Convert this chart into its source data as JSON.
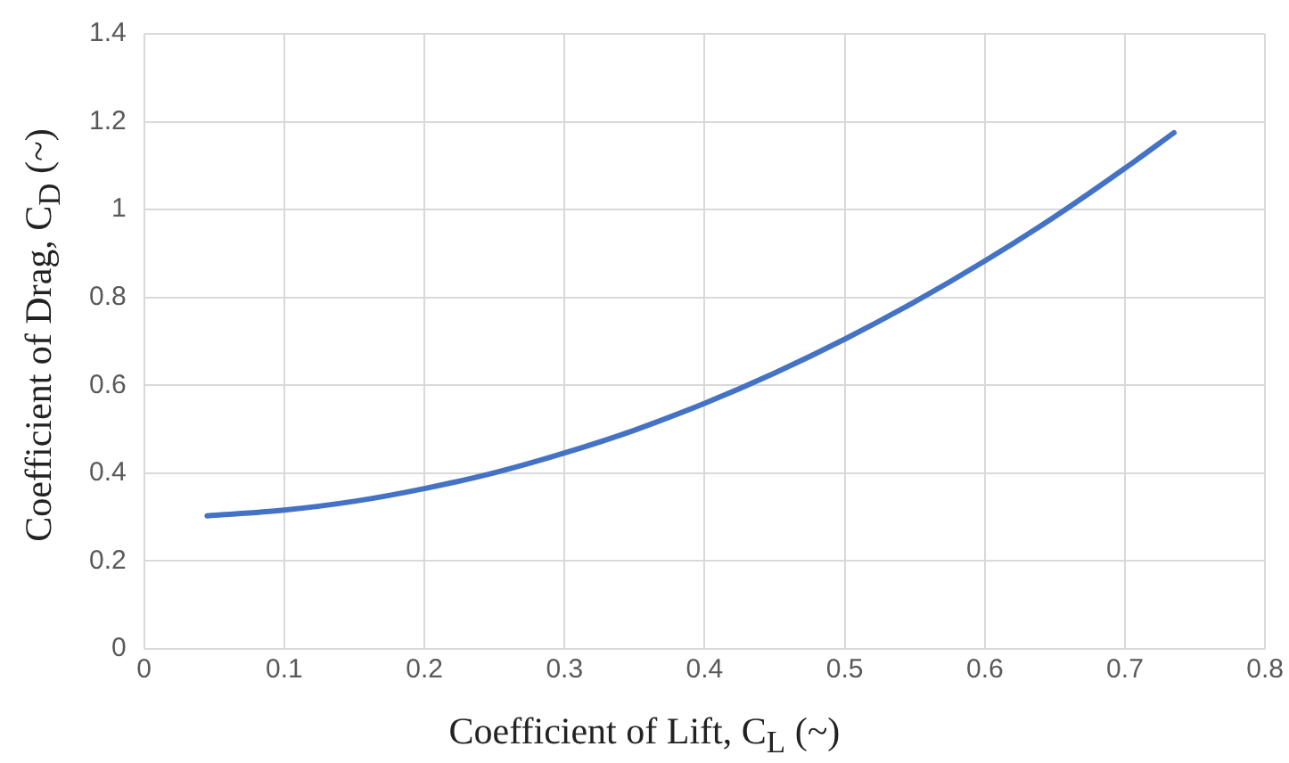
{
  "chart_data": {
    "type": "line",
    "xlabel": "Coefficient of Lift, C$_{L}$ (~)",
    "ylabel": "Coefficient of Drag, C$_{D}$ (~)",
    "x": [
      0.045,
      0.1,
      0.15,
      0.2,
      0.25,
      0.3,
      0.35,
      0.4,
      0.45,
      0.5,
      0.55,
      0.6,
      0.65,
      0.7,
      0.735
    ],
    "series": [
      {
        "color": "#4472c4",
        "values": [
          0.303,
          0.316,
          0.336,
          0.365,
          0.401,
          0.446,
          0.498,
          0.559,
          0.628,
          0.705,
          0.79,
          0.883,
          0.984,
          1.094,
          1.175
        ]
      }
    ],
    "xlim": [
      0,
      0.8
    ],
    "xticks": [
      0,
      0.1,
      0.2,
      0.3,
      0.4,
      0.5,
      0.6,
      0.7,
      0.8
    ],
    "ylim": [
      0,
      1.4
    ],
    "yticks": [
      0,
      0.2,
      0.4,
      0.6,
      0.8,
      1,
      1.2,
      1.4
    ],
    "grid": true,
    "legend": false,
    "marker": "none",
    "line_style": "solid"
  }
}
